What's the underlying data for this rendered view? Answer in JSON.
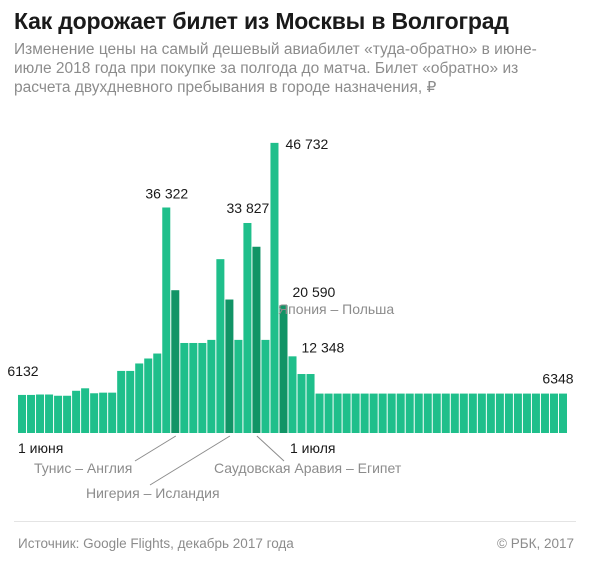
{
  "header": {
    "title": "Как дорожает билет из Москвы в Волгоград",
    "subtitle": "Изменение цены на самый дешевый авиабилет «туда-обратно» в июне-июле 2018 года при покупке за полгода до матча. Билет «обратно» из расчета двухдневного пребывания в городе назначения, ₽"
  },
  "footer": {
    "source": "Источник: Google Flights, декабрь 2017 года",
    "copyright": "© РБК, 2017"
  },
  "colors": {
    "bar": "#1fbf8b",
    "bar_highlight": "#119466",
    "label": "#1a1a1a",
    "muted": "#8c8c8c",
    "leader": "#8c8c8c"
  },
  "chart_data": {
    "type": "bar",
    "title": "Как дорожает билет из Москвы в Волгоград",
    "unit": "₽",
    "ylim": [
      0,
      48000
    ],
    "values": [
      6132,
      6132,
      6200,
      6200,
      6000,
      6000,
      6800,
      7200,
      6400,
      6500,
      6500,
      10000,
      10000,
      11200,
      12000,
      12800,
      36322,
      23000,
      14500,
      14500,
      14500,
      15000,
      28000,
      21500,
      15000,
      33827,
      30000,
      15000,
      46732,
      20590,
      12348,
      9500,
      9500,
      6348,
      6348,
      6348,
      6348,
      6348,
      6348,
      6348,
      6348,
      6348,
      6348,
      6348,
      6348,
      6348,
      6348,
      6348,
      6348,
      6348,
      6348,
      6348,
      6348,
      6348,
      6348,
      6348,
      6348,
      6348,
      6348,
      6348,
      6348
    ],
    "highlight_indices": [
      17,
      23,
      26,
      29
    ],
    "value_labels": [
      {
        "index": 0,
        "text": "6132"
      },
      {
        "index": 16,
        "text": "36 322"
      },
      {
        "index": 25,
        "text": "33 827"
      },
      {
        "index": 28,
        "text": "46 732"
      },
      {
        "index": 29,
        "text": "20 590"
      },
      {
        "index": 30,
        "text": "12 348"
      },
      {
        "index": 60,
        "text": "6348"
      }
    ],
    "date_labels": [
      {
        "index": 0,
        "text": "1 июня"
      },
      {
        "index": 30,
        "text": "1 июля"
      }
    ],
    "annotations": [
      {
        "index": 29,
        "text": "Япония – Польша"
      },
      {
        "index": 17,
        "text": "Тунис – Англия"
      },
      {
        "index": 23,
        "text": "Нигерия – Исландия"
      },
      {
        "index": 26,
        "text": "Саудовская Аравия – Египет"
      }
    ]
  }
}
